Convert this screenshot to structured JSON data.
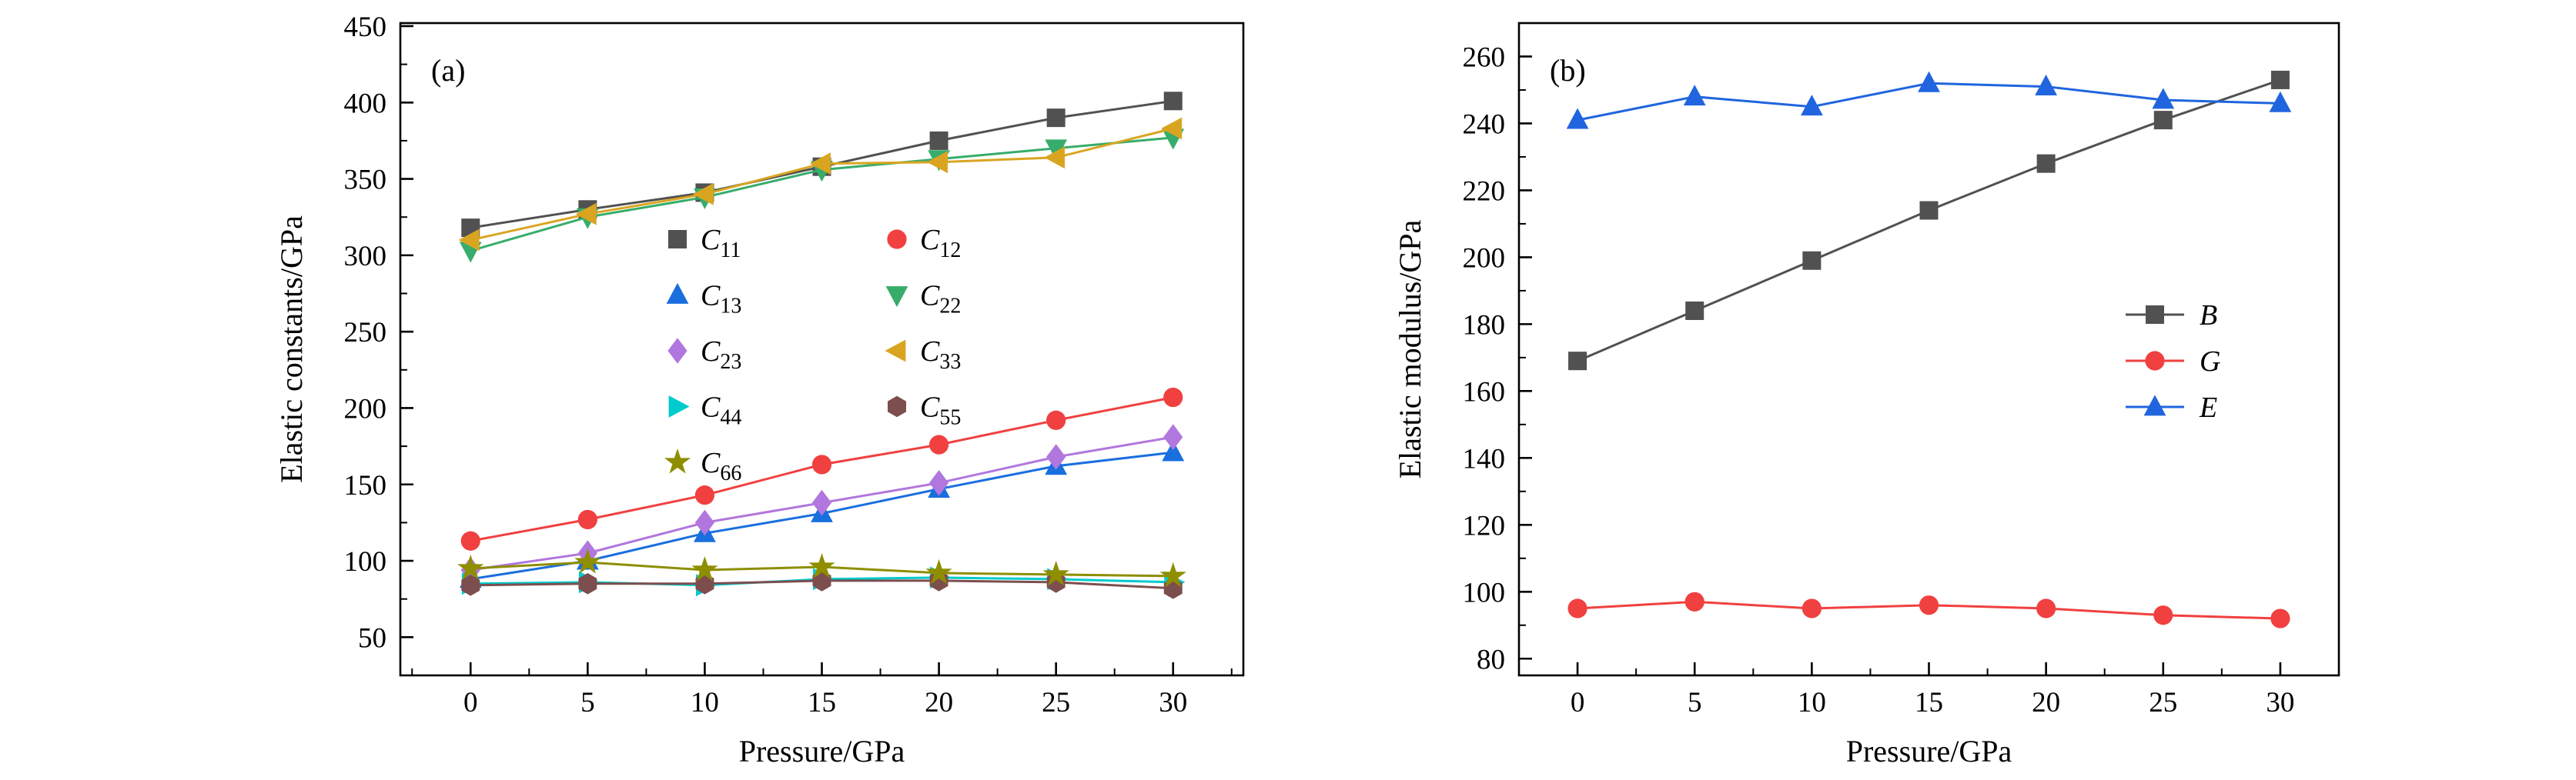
{
  "figure": {
    "background": "#ffffff",
    "axis_color": "#000000"
  },
  "chart_data": [
    {
      "type": "line",
      "panel_label": "(a)",
      "xlabel": "Pressure/GPa",
      "ylabel": "Elastic constants/GPa",
      "x": [
        0,
        5,
        10,
        15,
        20,
        25,
        30
      ],
      "xlim": [
        -3,
        33
      ],
      "ylim": [
        25,
        452
      ],
      "xticks": [
        0,
        5,
        10,
        15,
        20,
        25,
        30
      ],
      "yticks": [
        50,
        100,
        150,
        200,
        250,
        300,
        350,
        400,
        450
      ],
      "x_minor_step": 2.5,
      "y_minor_step": 25,
      "grid": false,
      "legend_position": "inside-upper-middle",
      "series": [
        {
          "name": "C11",
          "label": "C",
          "sub": "11",
          "marker": "square",
          "color": "#515151",
          "values": [
            318,
            330,
            341,
            358,
            375,
            390,
            401
          ]
        },
        {
          "name": "C12",
          "label": "C",
          "sub": "12",
          "marker": "circle",
          "color": "#F14040",
          "values": [
            113,
            127,
            143,
            163,
            176,
            192,
            207
          ]
        },
        {
          "name": "C13",
          "label": "C",
          "sub": "13",
          "marker": "triangle-up",
          "color": "#1A6FDF",
          "values": [
            88,
            100,
            118,
            131,
            147,
            162,
            171
          ]
        },
        {
          "name": "C22",
          "label": "C",
          "sub": "22",
          "marker": "triangle-down",
          "color": "#37AD6B",
          "values": [
            303,
            325,
            338,
            356,
            363,
            370,
            377
          ]
        },
        {
          "name": "C23",
          "label": "C",
          "sub": "23",
          "marker": "diamond",
          "color": "#B177DE",
          "values": [
            94,
            105,
            125,
            138,
            151,
            168,
            181
          ]
        },
        {
          "name": "C33",
          "label": "C",
          "sub": "33",
          "marker": "triangle-left",
          "color": "#D9A521",
          "values": [
            310,
            327,
            340,
            360,
            361,
            364,
            383
          ]
        },
        {
          "name": "C44",
          "label": "C",
          "sub": "44",
          "marker": "triangle-right",
          "color": "#00CBCC",
          "values": [
            85,
            86,
            84,
            88,
            89,
            88,
            86
          ]
        },
        {
          "name": "C55",
          "label": "C",
          "sub": "55",
          "marker": "hexagon",
          "color": "#7D4E4E",
          "values": [
            84,
            85,
            85,
            87,
            87,
            86,
            82
          ]
        },
        {
          "name": "C66",
          "label": "C",
          "sub": "66",
          "marker": "star",
          "color": "#8E8E00",
          "values": [
            95,
            99,
            94,
            96,
            92,
            91,
            90
          ]
        }
      ],
      "legend_rows": [
        [
          "C11",
          "C12"
        ],
        [
          "C13",
          "C22"
        ],
        [
          "C23",
          "C33"
        ],
        [
          "C44",
          "C55"
        ],
        [
          "C66"
        ]
      ]
    },
    {
      "type": "line",
      "panel_label": "(b)",
      "xlabel": "Pressure/GPa",
      "ylabel": "Elastic modulus/GPa",
      "x": [
        0,
        5,
        10,
        15,
        20,
        25,
        30
      ],
      "xlim": [
        -2.5,
        32.5
      ],
      "ylim": [
        75,
        270
      ],
      "xticks": [
        0,
        5,
        10,
        15,
        20,
        25,
        30
      ],
      "yticks": [
        80,
        100,
        120,
        140,
        160,
        180,
        200,
        220,
        240,
        260
      ],
      "x_minor_step": 2.5,
      "y_minor_step": 10,
      "grid": false,
      "legend_position": "inside-middle-right",
      "series": [
        {
          "name": "B",
          "label": "B",
          "sub": "",
          "marker": "square",
          "color": "#515151",
          "values": [
            169,
            184,
            199,
            214,
            228,
            241,
            253
          ]
        },
        {
          "name": "G",
          "label": "G",
          "sub": "",
          "marker": "circle",
          "color": "#F14040",
          "values": [
            95,
            97,
            95,
            96,
            95,
            93,
            92
          ]
        },
        {
          "name": "E",
          "label": "E",
          "sub": "",
          "marker": "triangle-up",
          "color": "#2065DF",
          "values": [
            241,
            248,
            245,
            252,
            251,
            247,
            246
          ]
        }
      ],
      "legend_rows": [
        [
          "B"
        ],
        [
          "G"
        ],
        [
          "E"
        ]
      ]
    }
  ]
}
